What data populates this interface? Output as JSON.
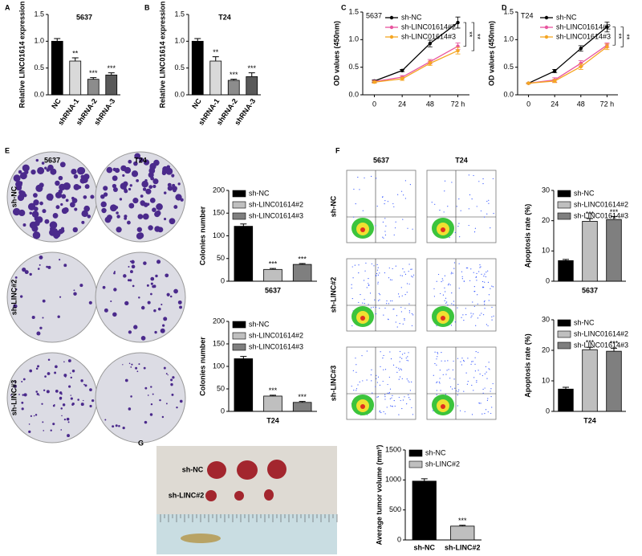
{
  "chart_data": [
    {
      "type": "bar",
      "panel": "A",
      "title": "5637",
      "ylabel": "Relative LINC01614 expression",
      "categories": [
        "NC",
        "shRNA-1",
        "shRNA-2",
        "shRNA-3"
      ],
      "values": [
        1.0,
        0.63,
        0.29,
        0.37
      ],
      "errors": [
        0.05,
        0.06,
        0.03,
        0.04
      ],
      "annotations": [
        null,
        "**",
        "***",
        "***"
      ],
      "colors": [
        "#000000",
        "#d9d9d9",
        "#8c8c8c",
        "#595959"
      ],
      "ylim": [
        0,
        1.5
      ],
      "yticks": [
        {
          "value": 0,
          "label": "0.0"
        },
        {
          "value": 0.5,
          "label": "0.5"
        },
        {
          "value": 1,
          "label": "1.0"
        },
        {
          "value": 1.5,
          "label": "1.5"
        }
      ],
      "category_labels": true,
      "legend": false
    },
    {
      "type": "bar",
      "panel": "B",
      "title": "T24",
      "ylabel": "Relative LINC01614 expression",
      "categories": [
        "NC",
        "shRNA-1",
        "shRNA-2",
        "shRNA-3"
      ],
      "values": [
        1.0,
        0.63,
        0.27,
        0.34
      ],
      "errors": [
        0.05,
        0.08,
        0.02,
        0.07
      ],
      "annotations": [
        null,
        "**",
        "***",
        "***"
      ],
      "colors": [
        "#000000",
        "#d9d9d9",
        "#8c8c8c",
        "#595959"
      ],
      "ylim": [
        0,
        1.5
      ],
      "yticks": [
        {
          "value": 0,
          "label": "0.0"
        },
        {
          "value": 0.5,
          "label": "0.5"
        },
        {
          "value": 1,
          "label": "1.0"
        },
        {
          "value": 1.5,
          "label": "1.5"
        }
      ],
      "category_labels": true,
      "legend": false
    },
    {
      "type": "line",
      "panel": "C",
      "title": "5637",
      "ylabel": "OD values (450nm)",
      "x": [
        0,
        24,
        48,
        72
      ],
      "xlim": [
        -10,
        82
      ],
      "xticks": [
        0,
        24,
        48,
        {
          "value": 72,
          "label": "72 h"
        }
      ],
      "ylim": [
        0,
        1.5
      ],
      "yticks": [
        {
          "value": 0,
          "label": "0.0"
        },
        {
          "value": 0.5,
          "label": "0.5"
        },
        {
          "value": 1,
          "label": "1.0"
        },
        {
          "value": 1.5,
          "label": "1.5"
        }
      ],
      "series": [
        {
          "name": "sh-NC",
          "color": "#000000",
          "values": [
            0.25,
            0.44,
            0.93,
            1.31
          ],
          "errors": [
            0.02,
            0.02,
            0.06,
            0.1
          ]
        },
        {
          "name": "sh-LINC01614#2",
          "color": "#e8559f",
          "values": [
            0.24,
            0.32,
            0.6,
            0.88
          ],
          "errors": [
            0.02,
            0.03,
            0.04,
            0.06
          ]
        },
        {
          "name": "sh-LINC01614#3",
          "color": "#f5a623",
          "values": [
            0.23,
            0.29,
            0.57,
            0.8
          ],
          "errors": [
            0.02,
            0.03,
            0.04,
            0.06
          ]
        }
      ],
      "annotations": [
        "**",
        "**"
      ]
    },
    {
      "type": "line",
      "panel": "D",
      "title": "T24",
      "ylabel": "OD values (450nm)",
      "x": [
        0,
        24,
        48,
        72
      ],
      "xlim": [
        -10,
        82
      ],
      "xticks": [
        0,
        24,
        48,
        {
          "value": 72,
          "label": "72 h"
        }
      ],
      "ylim": [
        0,
        1.5
      ],
      "yticks": [
        {
          "value": 0,
          "label": "0.0"
        },
        {
          "value": 0.5,
          "label": "0.5"
        },
        {
          "value": 1,
          "label": "1.0"
        },
        {
          "value": 1.5,
          "label": "1.5"
        }
      ],
      "series": [
        {
          "name": "sh-NC",
          "color": "#000000",
          "values": [
            0.21,
            0.43,
            0.84,
            1.23
          ],
          "errors": [
            0.01,
            0.03,
            0.05,
            0.09
          ]
        },
        {
          "name": "sh-LINC01614#2",
          "color": "#e8559f",
          "values": [
            0.21,
            0.27,
            0.57,
            0.9
          ],
          "errors": [
            0.01,
            0.04,
            0.05,
            0.04
          ]
        },
        {
          "name": "sh-LINC01614#3",
          "color": "#f5a623",
          "values": [
            0.21,
            0.25,
            0.51,
            0.87
          ],
          "errors": [
            0.01,
            0.03,
            0.05,
            0.05
          ]
        }
      ],
      "annotations": [
        "**",
        "**"
      ]
    },
    {
      "type": "bar",
      "panel": "E",
      "ylabel": "Colonies number",
      "xlabel": "5637",
      "categories": [
        "sh-NC",
        "sh-LINC01614#2",
        "sh-LINC01614#3"
      ],
      "values": [
        121,
        26,
        37
      ],
      "errors": [
        5,
        2,
        2
      ],
      "annotations": [
        null,
        "***",
        "***"
      ],
      "colors": [
        "#000000",
        "#bfbfbf",
        "#7f7f7f"
      ],
      "ylim": [
        0,
        200
      ],
      "yticks": [
        0,
        50,
        100,
        150,
        200
      ],
      "category_labels": false,
      "legend": true
    },
    {
      "type": "bar",
      "ylabel": "Colonies number",
      "xlabel": "T24",
      "categories": [
        "sh-NC",
        "sh-LINC01614#2",
        "sh-LINC01614#3"
      ],
      "values": [
        117,
        34,
        20
      ],
      "errors": [
        5,
        2,
        2
      ],
      "annotations": [
        null,
        "***",
        "***"
      ],
      "colors": [
        "#000000",
        "#bfbfbf",
        "#7f7f7f"
      ],
      "ylim": [
        0,
        200
      ],
      "yticks": [
        0,
        50,
        100,
        150,
        200
      ],
      "category_labels": false,
      "legend": true
    },
    {
      "type": "bar",
      "panel": "F",
      "ylabel": "Apoptosis rate (%)",
      "xlabel": "5637",
      "categories": [
        "sh-NC",
        "sh-LINC01614#2",
        "sh-LINC01614#3"
      ],
      "values": [
        6.8,
        19.8,
        20.4
      ],
      "errors": [
        0.4,
        0.9,
        1.0
      ],
      "annotations": [
        null,
        "***",
        "***"
      ],
      "colors": [
        "#000000",
        "#bfbfbf",
        "#7f7f7f"
      ],
      "ylim": [
        0,
        30
      ],
      "yticks": [
        0,
        10,
        20,
        30
      ],
      "category_labels": false,
      "legend": true
    },
    {
      "type": "bar",
      "ylabel": "Apoptosis rate (%)",
      "xlabel": "T24",
      "categories": [
        "sh-NC",
        "sh-LINC01614#2",
        "sh-LINC01614#3"
      ],
      "values": [
        7.3,
        20.2,
        19.7
      ],
      "errors": [
        0.6,
        0.8,
        1.0
      ],
      "annotations": [
        null,
        "***",
        "***"
      ],
      "colors": [
        "#000000",
        "#bfbfbf",
        "#7f7f7f"
      ],
      "ylim": [
        0,
        30
      ],
      "yticks": [
        0,
        10,
        20,
        30
      ],
      "category_labels": false,
      "legend": true
    },
    {
      "type": "bar",
      "panel": "G",
      "ylabel": "Average tumor volume (mm³)",
      "categories": [
        "sh-NC",
        "sh-LINC#2"
      ],
      "values": [
        980,
        230
      ],
      "errors": [
        40,
        15
      ],
      "annotations": [
        null,
        "***"
      ],
      "colors": [
        "#000000",
        "#bfbfbf"
      ],
      "ylim": [
        0,
        1500
      ],
      "yticks": [
        0,
        500,
        1000,
        1500
      ],
      "category_labels": true,
      "legend": true
    }
  ],
  "images": [
    {
      "panel": "E",
      "columns": [
        "5637",
        "T24"
      ],
      "rows": [
        "sh-NC",
        "sh-LINC#2",
        "sh-LINC#3"
      ]
    },
    {
      "panel": "F",
      "columns": [
        "5637",
        "T24"
      ],
      "rows": [
        "sh-NC",
        "sh-LINC#2",
        "sh-LINC#3"
      ]
    },
    {
      "panel": "G",
      "rows": [
        "sh-NC",
        "sh-LINC#2"
      ]
    }
  ]
}
